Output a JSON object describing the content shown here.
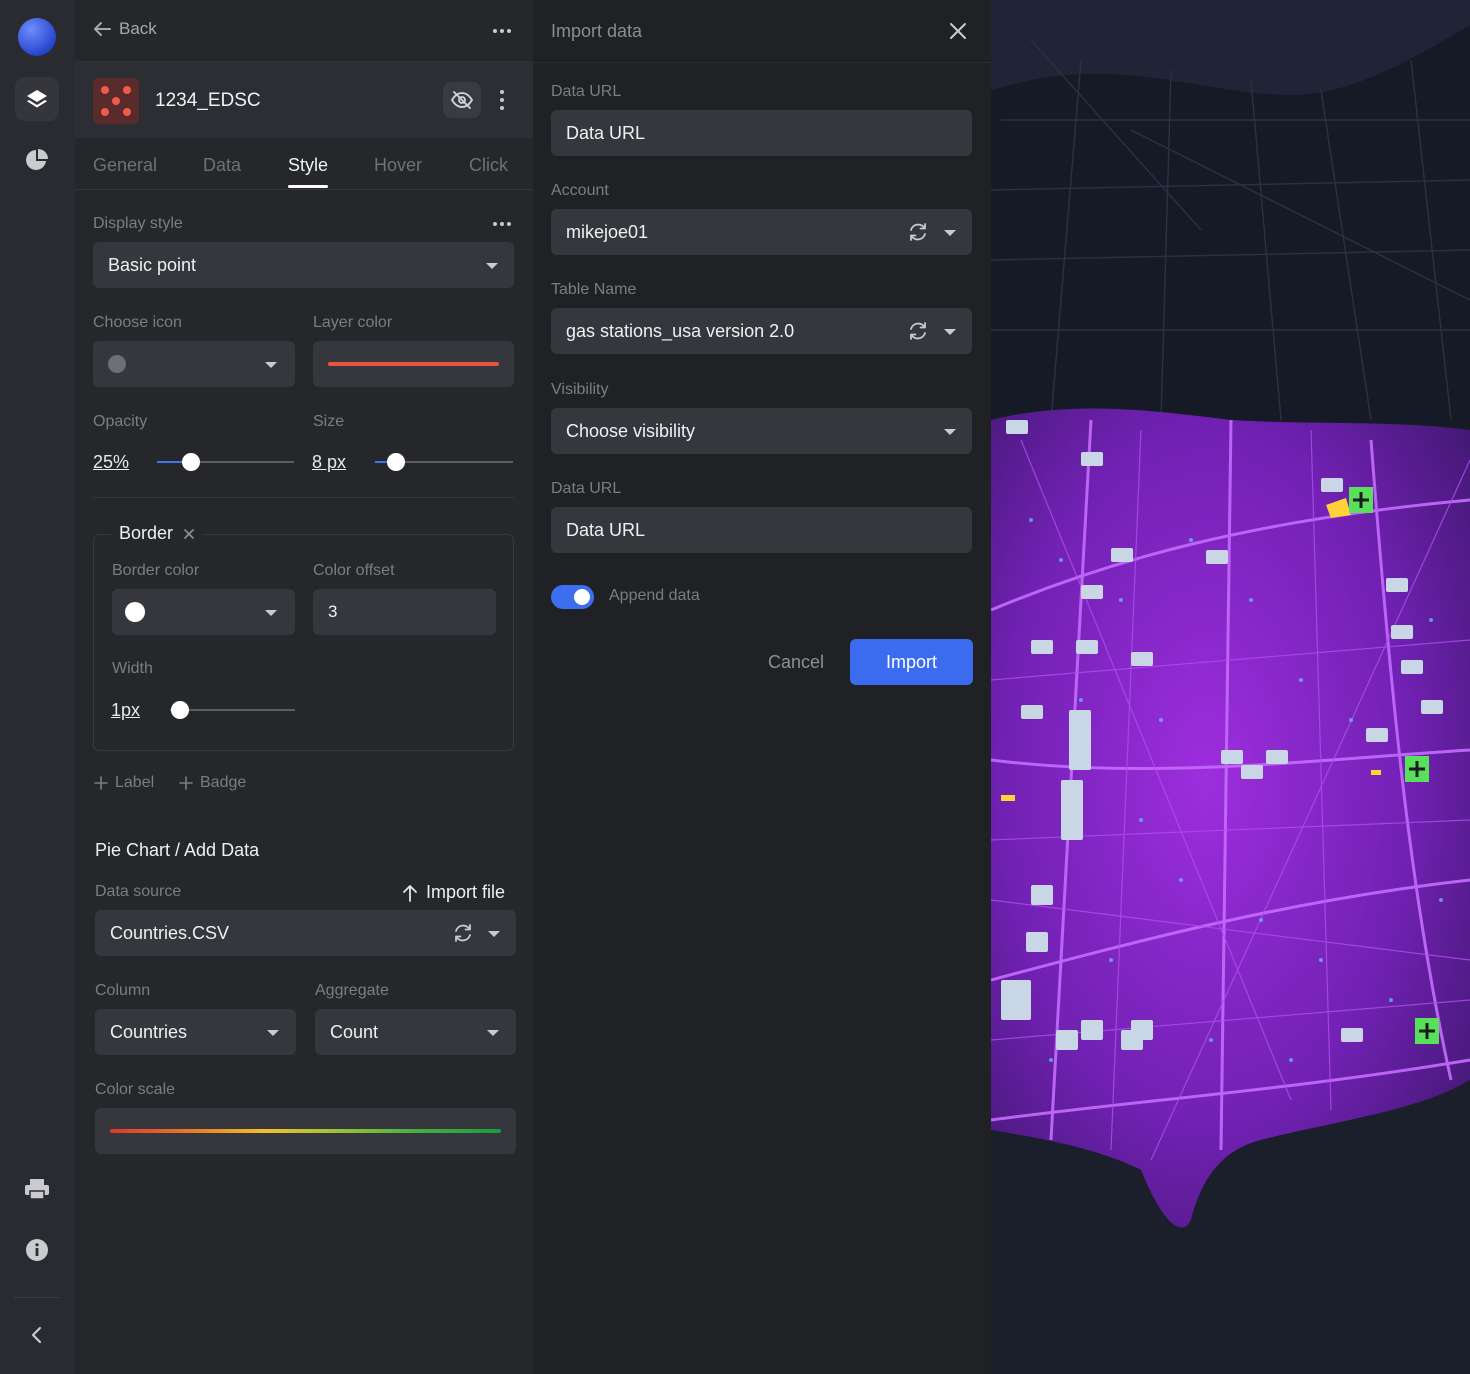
{
  "layer_panel": {
    "back_label": "Back",
    "layer_name": "1234_EDSC",
    "tabs": [
      {
        "label": "General"
      },
      {
        "label": "Data"
      },
      {
        "label": "Style"
      },
      {
        "label": "Hover"
      },
      {
        "label": "Click"
      }
    ],
    "active_tab": "Style",
    "display_style": {
      "label": "Display style",
      "value": "Basic point"
    },
    "choose_icon": {
      "label": "Choose icon"
    },
    "layer_color": {
      "label": "Layer color",
      "color": "#e8533f"
    },
    "opacity": {
      "label": "Opacity",
      "value": "25%",
      "fraction": 0.25
    },
    "size": {
      "label": "Size",
      "value": "8 px",
      "fraction": 0.15
    },
    "border": {
      "title": "Border",
      "border_color": {
        "label": "Border color",
        "color": "#ffffff"
      },
      "color_offset": {
        "label": "Color offset",
        "value": "3"
      },
      "width": {
        "label": "Width",
        "value": "1px",
        "fraction": 0.08
      }
    },
    "add_label": "Label",
    "add_badge": "Badge",
    "pie_chart": {
      "title": "Pie Chart / Add Data",
      "data_source_label": "Data source",
      "import_file_label": "Import file",
      "data_source_value": "Countries.CSV",
      "column": {
        "label": "Column",
        "value": "Countries"
      },
      "aggregate": {
        "label": "Aggregate",
        "value": "Count"
      },
      "color_scale_label": "Color scale",
      "color_scale_colors": [
        "#d93a2b",
        "#e8782a",
        "#f2c12b",
        "#8fc43a",
        "#3fae43",
        "#1f9a3e"
      ]
    }
  },
  "import_panel": {
    "title": "Import data",
    "data_url_label": "Data URL",
    "data_url_value": "Data URL",
    "account_label": "Account",
    "account_value": "mikejoe01",
    "table_name_label": "Table Name",
    "table_name_value": "gas stations_usa version 2.0",
    "visibility_label": "Visibility",
    "visibility_value": "Choose visibility",
    "data_url2_label": "Data URL",
    "data_url2_value": "Data URL",
    "append_label": "Append data",
    "append_on": true,
    "cancel_label": "Cancel",
    "import_label": "Import"
  },
  "colors": {
    "accent": "#3b6cf0",
    "map_overlay": "#9b2fe0",
    "marker_green": "#58e05a"
  }
}
